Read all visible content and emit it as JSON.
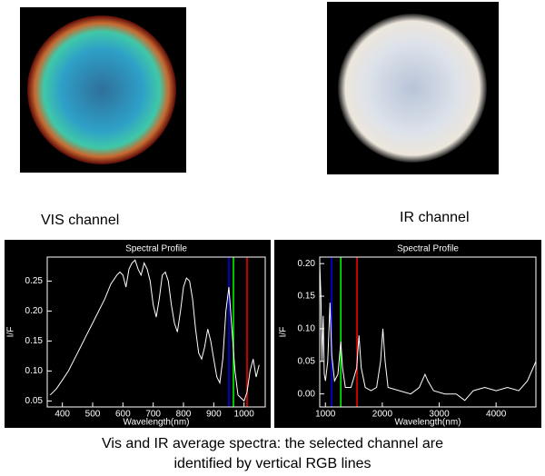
{
  "images": [
    {
      "label": "VIS channel"
    },
    {
      "label": "IR channel"
    }
  ],
  "chart_data": [
    {
      "type": "line",
      "title": "Spectral Profile",
      "xlabel": "Wavelength(nm)",
      "ylabel": "I/F",
      "xlim": [
        350,
        1070
      ],
      "xticks": [
        400,
        500,
        600,
        700,
        800,
        900,
        1000
      ],
      "ylim": [
        0.04,
        0.29
      ],
      "yticks": [
        0.05,
        {
          "value": 0.1,
          "label": "0.10"
        },
        0.15,
        {
          "value": 0.2,
          "label": "0.20"
        },
        0.25
      ],
      "x": [
        360,
        380,
        400,
        420,
        440,
        460,
        480,
        500,
        520,
        540,
        560,
        580,
        590,
        600,
        610,
        620,
        630,
        640,
        650,
        660,
        670,
        680,
        690,
        700,
        710,
        720,
        730,
        740,
        750,
        760,
        770,
        780,
        790,
        800,
        810,
        820,
        830,
        840,
        850,
        860,
        870,
        880,
        890,
        900,
        910,
        920,
        930,
        940,
        950,
        960,
        970,
        980,
        990,
        1000,
        1010,
        1020,
        1030,
        1040,
        1050
      ],
      "series": [
        {
          "color": "#ffffff",
          "values": [
            0.06,
            0.07,
            0.085,
            0.1,
            0.12,
            0.14,
            0.16,
            0.18,
            0.2,
            0.22,
            0.245,
            0.26,
            0.265,
            0.26,
            0.24,
            0.27,
            0.28,
            0.285,
            0.27,
            0.26,
            0.28,
            0.27,
            0.25,
            0.21,
            0.19,
            0.22,
            0.26,
            0.265,
            0.25,
            0.21,
            0.18,
            0.165,
            0.2,
            0.24,
            0.255,
            0.25,
            0.22,
            0.17,
            0.13,
            0.12,
            0.14,
            0.17,
            0.15,
            0.12,
            0.09,
            0.08,
            0.12,
            0.2,
            0.24,
            0.17,
            0.1,
            0.06,
            0.055,
            0.05,
            0.065,
            0.1,
            0.12,
            0.09,
            0.11
          ]
        }
      ],
      "markers": [
        {
          "x": 950,
          "color": "#0000ff"
        },
        {
          "x": 965,
          "color": "#00ff00"
        },
        {
          "x": 1010,
          "color": "#ff0000"
        }
      ]
    },
    {
      "type": "line",
      "title": "Spectral Profile",
      "xlabel": "Wavelength(nm)",
      "ylabel": "I/F",
      "xlim": [
        900,
        4700
      ],
      "xticks": [
        1000,
        2000,
        3000,
        4000
      ],
      "ylim": [
        -0.02,
        0.21
      ],
      "yticks": [
        {
          "value": 0,
          "label": "0.00"
        },
        0.05,
        {
          "value": 0.1,
          "label": "0.10"
        },
        0.15,
        {
          "value": 0.2,
          "label": "0.20"
        }
      ],
      "x": [
        900,
        920,
        940,
        960,
        980,
        1000,
        1040,
        1080,
        1110,
        1160,
        1220,
        1270,
        1300,
        1350,
        1450,
        1550,
        1590,
        1630,
        1700,
        1800,
        1900,
        1970,
        2010,
        2050,
        2100,
        2300,
        2500,
        2650,
        2750,
        2800,
        2900,
        3100,
        3300,
        3450,
        3600,
        3800,
        4000,
        4200,
        4400,
        4550,
        4650,
        4700
      ],
      "series": [
        {
          "color": "#ffffff",
          "values": [
            0.2,
            0.15,
            0.05,
            0.12,
            0.03,
            0.02,
            0.05,
            0.14,
            0.06,
            0.02,
            0.03,
            0.08,
            0.04,
            0.01,
            0.01,
            0.04,
            0.09,
            0.04,
            0.01,
            0.005,
            0.01,
            0.05,
            0.1,
            0.05,
            0.01,
            0.005,
            0,
            0.01,
            0.03,
            0.02,
            0.005,
            0,
            0,
            -0.01,
            0.005,
            0.01,
            0.005,
            0.01,
            0.005,
            0.02,
            0.04,
            0.05
          ]
        }
      ],
      "markers": [
        {
          "x": 1110,
          "color": "#0000ff"
        },
        {
          "x": 1270,
          "color": "#00ff00"
        },
        {
          "x": 1555,
          "color": "#ff0000"
        }
      ]
    }
  ],
  "caption": [
    "Vis and IR average spectra: the selected channel are",
    "identified by vertical RGB lines"
  ]
}
